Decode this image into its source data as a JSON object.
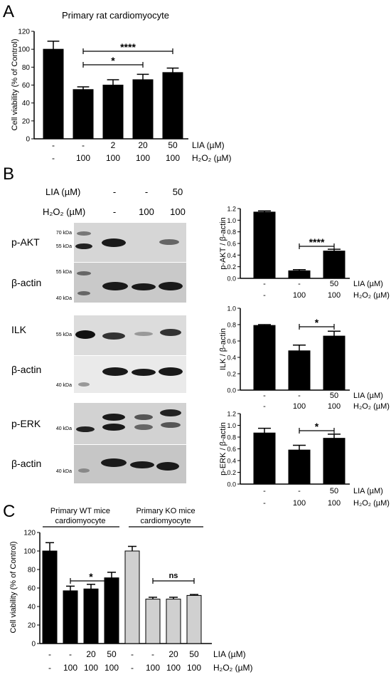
{
  "panels": {
    "A": {
      "letter": "A",
      "title": "Primary rat cardiomyocyte",
      "ylabel": "Cell viability (% of Control)",
      "yticks": [
        "0",
        "20",
        "40",
        "60",
        "80",
        "100",
        "120"
      ],
      "treatment_rows": [
        {
          "label": "LIA (µM)",
          "values": [
            "-",
            "-",
            "2",
            "20",
            "50"
          ]
        },
        {
          "label": "H₂O₂ (µM)",
          "values": [
            "-",
            "100",
            "100",
            "100",
            "100"
          ]
        }
      ],
      "significance": [
        {
          "label": "*",
          "from": 1,
          "to": 3
        },
        {
          "label": "****",
          "from": 1,
          "to": 4
        }
      ]
    },
    "B": {
      "letter": "B",
      "header_rows": [
        {
          "label": "LIA (µM)",
          "values": [
            "-",
            "-",
            "50"
          ]
        },
        {
          "label": "H₂O₂ (µM)",
          "values": [
            "-",
            "100",
            "100"
          ]
        }
      ],
      "blots": [
        {
          "label": "p-AKT",
          "markers": [
            "70 kDa",
            "55 kDa"
          ]
        },
        {
          "label": "β-actin",
          "markers": [
            "55 kDa",
            "40 kDa"
          ]
        },
        {
          "label": "ILK",
          "markers": [
            "55 kDa"
          ]
        },
        {
          "label": "β-actin",
          "markers": [
            "40 kDa"
          ]
        },
        {
          "label": "p-ERK",
          "markers": [
            "40 kDa"
          ]
        },
        {
          "label": "β-actin",
          "markers": [
            "40 kDa"
          ]
        }
      ],
      "treatment_rows": [
        {
          "label": "LIA (µM)",
          "values": [
            "-",
            "-",
            "50"
          ]
        },
        {
          "label": "H₂O₂ (µM)",
          "values": [
            "-",
            "100",
            "100"
          ]
        }
      ]
    },
    "C": {
      "letter": "C",
      "ylabel": "Cell viability (% of Control)",
      "yticks": [
        "0",
        "20",
        "40",
        "60",
        "80",
        "100",
        "120"
      ],
      "group_labels": [
        {
          "line1": "Primary WT mice",
          "line2": "cardiomyocyte"
        },
        {
          "line1": "Primary KO mice",
          "line2": "cardiomyocyte"
        }
      ],
      "treatment_rows": [
        {
          "label": "LIA (µM)",
          "values": [
            "-",
            "-",
            "20",
            "50",
            "-",
            "-",
            "20",
            "50"
          ]
        },
        {
          "label": "H₂O₂ (µM)",
          "values": [
            "-",
            "100",
            "100",
            "100",
            "-",
            "100",
            "100",
            "100"
          ]
        }
      ],
      "significance": [
        {
          "label": "*",
          "from": 1,
          "to": 3
        },
        {
          "label": "ns",
          "from": 5,
          "to": 7
        }
      ]
    }
  },
  "colors": {
    "bar_black": "#000000",
    "bar_grey": "#d0d0d0",
    "axis": "#000000"
  },
  "chart_data": [
    {
      "type": "bar",
      "title": "Primary rat cardiomyocyte",
      "ylabel": "Cell viability (% of Control)",
      "ylim": [
        0,
        120
      ],
      "categories": [
        "Control",
        "H2O2 100",
        "LIA 2 + H2O2",
        "LIA 20 + H2O2",
        "LIA 50 + H2O2"
      ],
      "values": [
        100,
        55,
        60,
        66,
        74
      ],
      "errors": [
        9,
        3,
        6,
        6,
        5
      ]
    },
    {
      "type": "bar",
      "ylabel": "p-AKT / β-actin",
      "ylim": [
        0,
        1.2
      ],
      "yticks": [
        "0.0",
        "0.2",
        "0.4",
        "0.6",
        "0.8",
        "1.0",
        "1.2"
      ],
      "categories": [
        "Control",
        "H2O2 100",
        "LIA 50 + H2O2"
      ],
      "values": [
        1.14,
        0.13,
        0.47
      ],
      "errors": [
        0.02,
        0.02,
        0.03
      ],
      "significance": [
        {
          "label": "****",
          "from": 1,
          "to": 2
        }
      ]
    },
    {
      "type": "bar",
      "ylabel": "ILK / β-actin",
      "ylim": [
        0,
        1.0
      ],
      "yticks": [
        "0.0",
        "0.2",
        "0.4",
        "0.6",
        "0.8",
        "1.0"
      ],
      "categories": [
        "Control",
        "H2O2 100",
        "LIA 50 + H2O2"
      ],
      "values": [
        0.79,
        0.48,
        0.66
      ],
      "errors": [
        0.01,
        0.07,
        0.06
      ],
      "significance": [
        {
          "label": "*",
          "from": 1,
          "to": 2
        }
      ]
    },
    {
      "type": "bar",
      "ylabel": "p-ERK / β-actin",
      "ylim": [
        0,
        1.2
      ],
      "yticks": [
        "0.0",
        "0.2",
        "0.4",
        "0.6",
        "0.8",
        "1.0",
        "1.2"
      ],
      "categories": [
        "Control",
        "H2O2 100",
        "LIA 50 + H2O2"
      ],
      "values": [
        0.87,
        0.58,
        0.78
      ],
      "errors": [
        0.08,
        0.08,
        0.07
      ],
      "significance": [
        {
          "label": "*",
          "from": 1,
          "to": 2
        }
      ]
    },
    {
      "type": "bar",
      "ylabel": "Cell viability (% of Control)",
      "ylim": [
        0,
        120
      ],
      "categories": [
        "WT Control",
        "WT H2O2",
        "WT LIA 20 + H2O2",
        "WT LIA 50 + H2O2",
        "KO Control",
        "KO H2O2",
        "KO LIA 20 + H2O2",
        "KO LIA 50 + H2O2"
      ],
      "values": [
        100,
        57,
        59,
        71,
        100,
        48,
        48,
        52
      ],
      "errors": [
        9,
        5,
        5,
        6,
        5,
        2,
        2,
        1
      ]
    }
  ]
}
